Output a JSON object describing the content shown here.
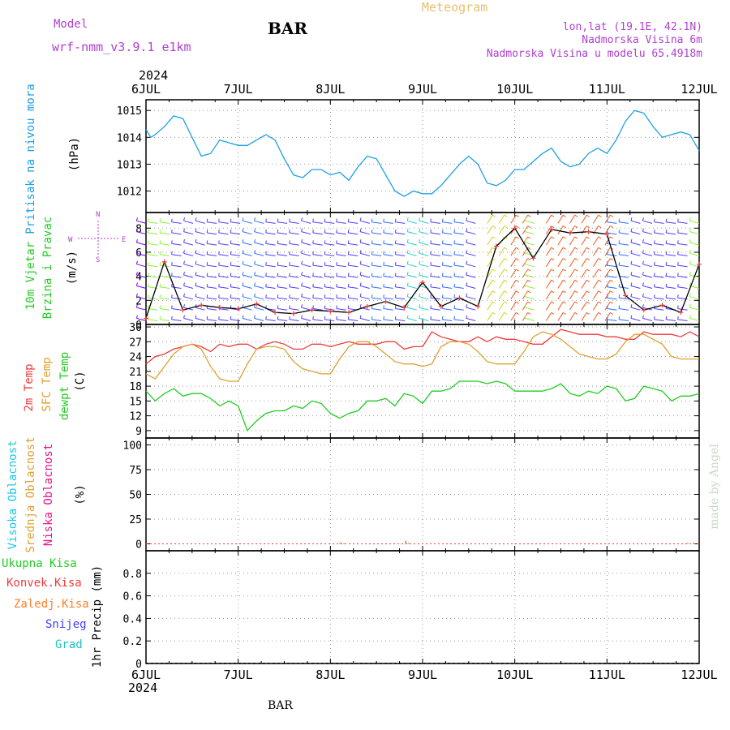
{
  "header": {
    "model_label": "Model",
    "model_name": "wrf-nmm_v3.9.1 e1km",
    "station": "BAR",
    "title": "Meteogram",
    "lonlat": "lon,lat (19.1E, 42.1N)",
    "elevation": "Nadmorska Visina 6m",
    "model_elevation": "Nadmorska Visina u modelu 65.4918m"
  },
  "footer": {
    "station": "BAR",
    "credit": "made by Angel"
  },
  "time_axis": {
    "year": "2024",
    "labels": [
      "6JUL",
      "7JUL",
      "8JUL",
      "9JUL",
      "10JUL",
      "11JUL",
      "12JUL"
    ]
  },
  "colors": {
    "pressure": "#1ea0e6",
    "t2m": "#ee3b3b",
    "sfc": "#e0a030",
    "dewpt": "#22cc22",
    "high_cloud": "#1ec8e6",
    "mid_cloud": "#e0a030",
    "low_cloud": "#e6148c",
    "total_precip": "#22cc22",
    "conv_precip": "#ee3b3b",
    "frozen_precip": "#ff7f27",
    "snow": "#4040ff",
    "hail": "#20c0c0",
    "header_purple": "#b040d0",
    "header_orange": "#e8c070"
  },
  "chart_data": [
    {
      "type": "line",
      "id": "pressure",
      "ylabel_name": "Pritisak na nivou mora",
      "ylabel_unit": "(hPa)",
      "ylim": [
        1011.2,
        1015.4
      ],
      "yticks": [
        1012,
        1013,
        1014,
        1015
      ],
      "grid": true,
      "x_days": [
        0,
        0.05,
        0.1,
        0.2,
        0.3,
        0.4,
        0.5,
        0.6,
        0.7,
        0.8,
        0.9,
        1.0,
        1.1,
        1.2,
        1.3,
        1.4,
        1.5,
        1.6,
        1.7,
        1.8,
        1.9,
        2.0,
        2.1,
        2.2,
        2.3,
        2.4,
        2.5,
        2.6,
        2.7,
        2.8,
        2.9,
        3.0,
        3.1,
        3.2,
        3.3,
        3.4,
        3.5,
        3.6,
        3.7,
        3.8,
        3.9,
        4.0,
        4.1,
        4.2,
        4.3,
        4.4,
        4.5,
        4.6,
        4.7,
        4.8,
        4.9,
        5.0,
        5.1,
        5.2,
        5.3,
        5.4,
        5.5,
        5.6,
        5.7,
        5.8,
        5.9,
        6.0
      ],
      "series": [
        {
          "values": [
            1014.3,
            1014.0,
            1014.1,
            1014.4,
            1014.8,
            1014.7,
            1014.0,
            1013.3,
            1013.4,
            1013.9,
            1013.8,
            1013.7,
            1013.7,
            1013.9,
            1014.1,
            1013.9,
            1013.2,
            1012.6,
            1012.5,
            1012.8,
            1012.8,
            1012.6,
            1012.7,
            1012.4,
            1012.9,
            1013.3,
            1013.2,
            1012.6,
            1012.0,
            1011.8,
            1012.0,
            1011.9,
            1011.9,
            1012.2,
            1012.6,
            1013.0,
            1013.3,
            1013.0,
            1012.3,
            1012.2,
            1012.4,
            1012.8,
            1012.8,
            1013.1,
            1013.4,
            1013.6,
            1013.1,
            1012.9,
            1013.0,
            1013.4,
            1013.6,
            1013.4,
            1013.9,
            1014.6,
            1015.0,
            1014.9,
            1014.4,
            1014.0,
            1014.1,
            1014.2,
            1014.1,
            1013.5
          ]
        }
      ]
    },
    {
      "type": "barbs",
      "id": "wind",
      "ylabel_name": "10m Vjetar",
      "ylabel_name2": "Brzina i Pravac",
      "ylabel_unit": "(m/s)",
      "compass": {
        "n": "N",
        "s": "S",
        "e": "E",
        "w": "W"
      },
      "ylim": [
        0,
        9.3
      ],
      "yticks": [
        0,
        2,
        4,
        6,
        8
      ],
      "grid": true,
      "x_days": [
        0,
        0.2,
        0.4,
        0.6,
        0.8,
        1.0,
        1.2,
        1.4,
        1.6,
        1.8,
        2.0,
        2.2,
        2.4,
        2.6,
        2.8,
        3.0,
        3.2,
        3.4,
        3.6,
        3.8,
        4.0,
        4.2,
        4.4,
        4.6,
        4.8,
        5.0,
        5.2,
        5.4,
        5.6,
        5.8,
        6.0
      ],
      "series": [
        {
          "name": "speed",
          "values": [
            0.5,
            5.2,
            1.2,
            1.6,
            1.4,
            1.3,
            1.7,
            1.0,
            0.9,
            1.2,
            1.1,
            1.0,
            1.5,
            1.9,
            1.4,
            3.5,
            1.5,
            2.2,
            1.5,
            6.5,
            8.0,
            5.5,
            7.9,
            7.6,
            7.7,
            7.5,
            2.4,
            1.2,
            1.6,
            1.0,
            5.0
          ]
        }
      ]
    },
    {
      "type": "line",
      "id": "temperature",
      "ylabel_names": [
        "2m Temp",
        "SFC Temp",
        "dewpt Temp"
      ],
      "ylabel_unit": "(C)",
      "ylim": [
        7.5,
        30.5
      ],
      "yticks": [
        9,
        12,
        15,
        18,
        21,
        24,
        27,
        30
      ],
      "grid": true,
      "x_days": [
        0,
        0.1,
        0.2,
        0.3,
        0.4,
        0.5,
        0.6,
        0.7,
        0.8,
        0.9,
        1.0,
        1.1,
        1.2,
        1.3,
        1.4,
        1.5,
        1.6,
        1.7,
        1.8,
        1.9,
        2.0,
        2.1,
        2.2,
        2.3,
        2.4,
        2.5,
        2.6,
        2.7,
        2.8,
        2.9,
        3.0,
        3.1,
        3.2,
        3.3,
        3.4,
        3.5,
        3.6,
        3.7,
        3.8,
        3.9,
        4.0,
        4.1,
        4.2,
        4.3,
        4.4,
        4.5,
        4.6,
        4.7,
        4.8,
        4.9,
        5.0,
        5.1,
        5.2,
        5.3,
        5.4,
        5.5,
        5.6,
        5.7,
        5.8,
        5.9,
        6.0
      ],
      "series": [
        {
          "name": "2m Temp",
          "values": [
            22.5,
            24.0,
            24.5,
            25.5,
            26.0,
            26.5,
            26.0,
            25.0,
            26.5,
            26.0,
            26.5,
            26.5,
            25.5,
            26.5,
            27.0,
            26.5,
            25.5,
            25.5,
            26.5,
            26.5,
            26.0,
            26.5,
            27.0,
            26.5,
            26.5,
            26.5,
            27.0,
            27.0,
            25.5,
            26.0,
            26.0,
            29.0,
            28.0,
            27.5,
            27.0,
            27.0,
            28.0,
            27.0,
            28.0,
            27.5,
            27.5,
            27.0,
            26.5,
            26.5,
            28.0,
            29.5,
            29.0,
            28.5,
            28.5,
            28.5,
            28.0,
            28.0,
            27.5,
            27.5,
            29.0,
            28.5,
            28.5,
            28.5,
            28.0,
            29.0,
            28.0
          ]
        },
        {
          "name": "SFC Temp",
          "values": [
            20.5,
            19.5,
            22.0,
            24.5,
            26.0,
            26.5,
            25.5,
            22.0,
            19.5,
            19.0,
            19.0,
            22.5,
            25.5,
            26.0,
            26.0,
            25.5,
            23.0,
            21.5,
            21.0,
            20.5,
            20.5,
            23.5,
            26.0,
            27.0,
            27.0,
            26.0,
            24.5,
            23.0,
            22.5,
            22.5,
            22.0,
            22.5,
            26.0,
            27.0,
            27.0,
            26.5,
            25.0,
            23.0,
            22.5,
            22.5,
            22.5,
            25.0,
            28.0,
            29.0,
            28.5,
            27.5,
            26.0,
            24.5,
            24.0,
            23.5,
            23.5,
            24.5,
            27.0,
            28.5,
            28.5,
            27.5,
            26.5,
            24.0,
            23.5,
            23.5,
            23.5
          ]
        },
        {
          "name": "dewpt Temp",
          "values": [
            17.0,
            15.0,
            16.5,
            17.5,
            16.0,
            16.5,
            16.5,
            15.5,
            14.0,
            15.0,
            14.0,
            9.0,
            11.0,
            12.5,
            13.0,
            13.0,
            14.0,
            13.5,
            15.0,
            14.5,
            12.5,
            11.5,
            12.5,
            13.0,
            15.0,
            15.0,
            15.5,
            14.0,
            16.5,
            16.0,
            14.5,
            17.0,
            17.0,
            17.5,
            19.0,
            19.0,
            19.0,
            18.5,
            19.0,
            18.5,
            17.0,
            17.0,
            17.0,
            17.0,
            17.5,
            18.5,
            16.5,
            16.0,
            17.0,
            16.5,
            18.0,
            17.5,
            15.0,
            15.5,
            18.0,
            17.5,
            17.0,
            15.0,
            16.0,
            16.0,
            16.5
          ]
        }
      ]
    },
    {
      "type": "bar",
      "id": "cloud",
      "ylabel_names": [
        "Visoka Oblacnost",
        "Srednja Oblacnost",
        "Niska Oblacnost"
      ],
      "ylabel_unit": "(%)",
      "ylim": [
        -7,
        107
      ],
      "yticks": [
        0,
        25,
        50,
        75,
        100
      ],
      "grid": true,
      "x_days": [
        2.08,
        2.14,
        2.79,
        2.84,
        5.85,
        5.93
      ],
      "series": [
        {
          "name": "Visoka Oblacnost",
          "values": [
            0,
            0.5,
            0,
            1,
            0,
            1
          ]
        },
        {
          "name": "Srednja Oblacnost",
          "values": [
            1.5,
            0,
            3,
            0,
            1,
            0
          ]
        },
        {
          "name": "Niska Oblacnost",
          "values": [
            0,
            0,
            0,
            0,
            0,
            0
          ]
        }
      ]
    },
    {
      "type": "bar",
      "id": "precip",
      "ylabel_names": [
        "Ukupna Kisa",
        "Konvek.Kisa",
        "Zaledj.Kisa",
        "Snijeg",
        "Grad"
      ],
      "ylabel_unit": "1hr Precip (mm)",
      "ylim": [
        0,
        1.0
      ],
      "yticks": [
        0,
        0.2,
        0.4,
        0.6,
        0.8
      ],
      "grid": true,
      "x_days": [],
      "series": []
    }
  ]
}
